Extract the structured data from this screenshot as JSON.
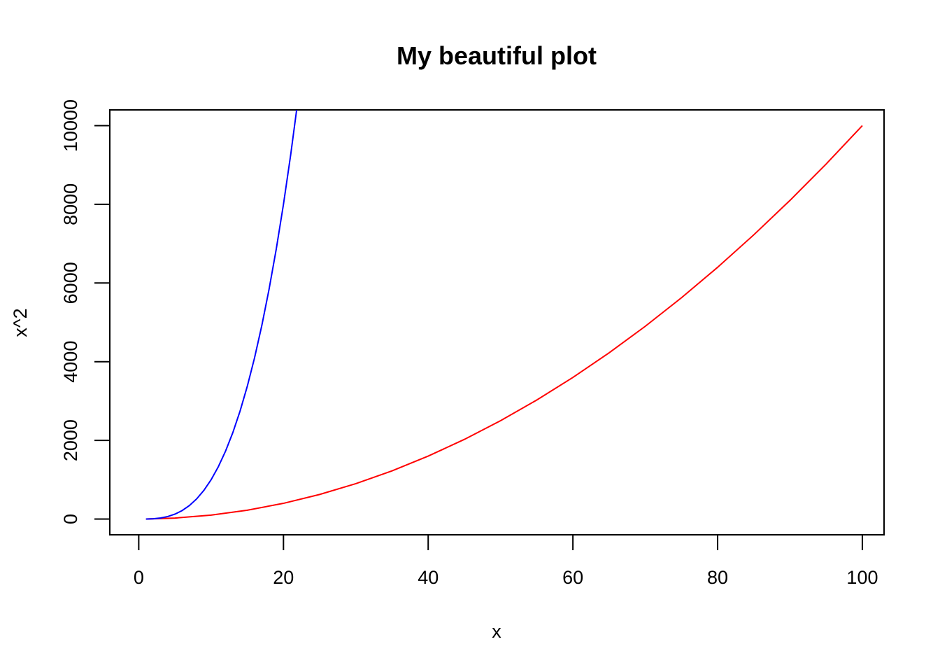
{
  "chart_data": {
    "type": "line",
    "title": "My beautiful plot",
    "xlabel": "x",
    "ylabel": "x^2",
    "xlim": [
      -4,
      103
    ],
    "ylim": [
      -400,
      10400
    ],
    "x_ticks": [
      0,
      20,
      40,
      60,
      80,
      100
    ],
    "y_ticks": [
      0,
      2000,
      4000,
      6000,
      8000,
      10000
    ],
    "grid": false,
    "legend": "none",
    "series": [
      {
        "color": "#ff0000",
        "x": [
          1,
          5,
          10,
          15,
          20,
          25,
          30,
          35,
          40,
          45,
          50,
          55,
          60,
          65,
          70,
          75,
          80,
          85,
          90,
          95,
          100
        ],
        "y": [
          1,
          25,
          100,
          225,
          400,
          625,
          900,
          1225,
          1600,
          2025,
          2500,
          3025,
          3600,
          4225,
          4900,
          5625,
          6400,
          7225,
          8100,
          9025,
          10000
        ]
      },
      {
        "color": "#0000ff",
        "x": [
          1,
          2,
          3,
          4,
          5,
          6,
          7,
          8,
          9,
          10,
          11,
          12,
          13,
          14,
          15,
          16,
          17,
          18,
          19,
          20,
          21,
          22
        ],
        "y": [
          1,
          8,
          27,
          64,
          125,
          216,
          343,
          512,
          729,
          1000,
          1331,
          1728,
          2197,
          2744,
          3375,
          4096,
          4913,
          5832,
          6859,
          8000,
          9261,
          10648
        ]
      }
    ]
  }
}
